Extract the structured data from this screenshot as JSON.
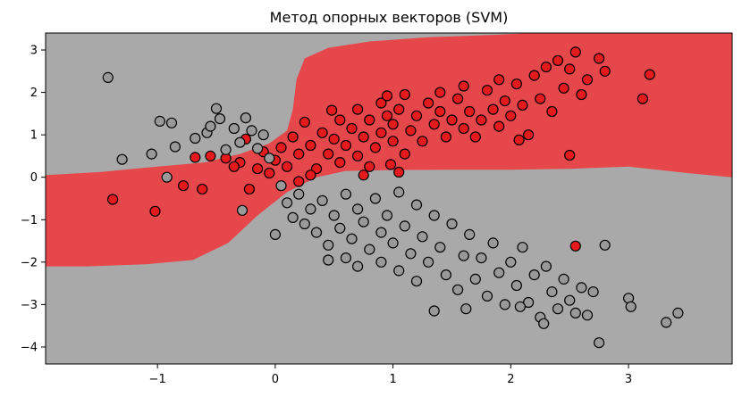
{
  "chart_data": {
    "type": "scatter",
    "title": "Метод опорных векторов (SVM)",
    "xlabel": "",
    "ylabel": "",
    "xlim": [
      -1.95,
      3.88
    ],
    "ylim": [
      -4.4,
      3.4
    ],
    "xticks": [
      -1,
      0,
      1,
      2,
      3
    ],
    "yticks": [
      3,
      2,
      1,
      0,
      -1,
      -2,
      -3,
      -4
    ],
    "xtick_labels": [
      "−1",
      "0",
      "1",
      "2",
      "3"
    ],
    "ytick_labels": [
      "3",
      "2",
      "1",
      "0",
      "−1",
      "−2",
      "−3",
      "−4"
    ],
    "grid": false,
    "legend": false,
    "background_color": "#a9a9a9",
    "decision_region_color": "#e6474a",
    "series": [
      {
        "color": "#e41a1c",
        "points": [
          [
            -1.38,
            -0.52
          ],
          [
            -1.02,
            -0.8
          ],
          [
            -0.78,
            -0.2
          ],
          [
            -0.68,
            0.47
          ],
          [
            -0.62,
            -0.28
          ],
          [
            -0.55,
            0.5
          ],
          [
            -0.42,
            0.45
          ],
          [
            -0.3,
            0.35
          ],
          [
            -0.25,
            0.9
          ],
          [
            -0.22,
            -0.28
          ],
          [
            -0.15,
            0.2
          ],
          [
            -0.1,
            0.6
          ],
          [
            -0.05,
            0.1
          ],
          [
            0.0,
            0.4
          ],
          [
            0.05,
            0.7
          ],
          [
            0.1,
            0.25
          ],
          [
            0.15,
            0.95
          ],
          [
            0.2,
            0.55
          ],
          [
            0.2,
            -0.1
          ],
          [
            0.25,
            1.3
          ],
          [
            0.3,
            0.75
          ],
          [
            0.35,
            0.2
          ],
          [
            0.4,
            1.05
          ],
          [
            0.45,
            0.55
          ],
          [
            0.5,
            0.9
          ],
          [
            0.55,
            1.35
          ],
          [
            0.55,
            0.35
          ],
          [
            0.6,
            0.75
          ],
          [
            0.65,
            1.15
          ],
          [
            0.7,
            0.5
          ],
          [
            0.7,
            1.6
          ],
          [
            0.75,
            0.95
          ],
          [
            0.8,
            1.35
          ],
          [
            0.8,
            0.25
          ],
          [
            0.85,
            0.7
          ],
          [
            0.9,
            1.05
          ],
          [
            0.9,
            1.75
          ],
          [
            0.95,
            1.45
          ],
          [
            1.0,
            0.85
          ],
          [
            1.0,
            1.25
          ],
          [
            1.05,
            1.6
          ],
          [
            1.1,
            0.55
          ],
          [
            1.1,
            1.95
          ],
          [
            1.15,
            1.1
          ],
          [
            1.2,
            1.45
          ],
          [
            1.25,
            0.85
          ],
          [
            1.3,
            1.75
          ],
          [
            1.35,
            1.25
          ],
          [
            1.4,
            1.55
          ],
          [
            1.45,
            0.95
          ],
          [
            1.5,
            1.35
          ],
          [
            1.55,
            1.85
          ],
          [
            1.6,
            1.15
          ],
          [
            1.65,
            1.55
          ],
          [
            1.7,
            0.95
          ],
          [
            1.75,
            1.35
          ],
          [
            1.8,
            2.05
          ],
          [
            1.85,
            1.6
          ],
          [
            1.9,
            1.2
          ],
          [
            1.95,
            1.8
          ],
          [
            2.0,
            1.45
          ],
          [
            2.05,
            2.2
          ],
          [
            2.1,
            1.7
          ],
          [
            2.15,
            1.0
          ],
          [
            2.2,
            2.4
          ],
          [
            2.25,
            1.85
          ],
          [
            2.3,
            2.6
          ],
          [
            2.35,
            1.55
          ],
          [
            2.4,
            2.75
          ],
          [
            2.45,
            2.1
          ],
          [
            2.5,
            2.55
          ],
          [
            2.55,
            2.95
          ],
          [
            2.6,
            1.95
          ],
          [
            2.65,
            2.3
          ],
          [
            2.75,
            2.8
          ],
          [
            2.8,
            2.5
          ],
          [
            3.12,
            1.85
          ],
          [
            3.18,
            2.42
          ],
          [
            2.5,
            0.52
          ],
          [
            2.07,
            0.88
          ],
          [
            0.3,
            0.05
          ],
          [
            0.75,
            0.05
          ],
          [
            0.98,
            0.3
          ],
          [
            1.05,
            0.12
          ],
          [
            2.55,
            -1.62
          ],
          [
            1.6,
            2.15
          ],
          [
            0.48,
            1.58
          ],
          [
            1.9,
            2.3
          ],
          [
            1.4,
            2.0
          ],
          [
            0.95,
            1.92
          ],
          [
            -0.35,
            0.25
          ]
        ]
      },
      {
        "color": "#999999",
        "points": [
          [
            -1.42,
            2.35
          ],
          [
            -1.3,
            0.42
          ],
          [
            -0.98,
            1.32
          ],
          [
            -0.88,
            1.28
          ],
          [
            -0.85,
            0.72
          ],
          [
            -0.68,
            0.92
          ],
          [
            -0.58,
            1.05
          ],
          [
            -0.55,
            1.2
          ],
          [
            -0.5,
            1.62
          ],
          [
            -0.47,
            1.38
          ],
          [
            -0.42,
            0.65
          ],
          [
            -0.35,
            1.15
          ],
          [
            -0.3,
            0.82
          ],
          [
            -0.25,
            1.4
          ],
          [
            -0.2,
            1.1
          ],
          [
            -0.15,
            0.68
          ],
          [
            -0.1,
            1.0
          ],
          [
            -0.05,
            0.45
          ],
          [
            -0.28,
            -0.78
          ],
          [
            -1.05,
            0.55
          ],
          [
            -0.92,
            0.0
          ],
          [
            0.0,
            -1.35
          ],
          [
            0.05,
            -0.2
          ],
          [
            0.1,
            -0.6
          ],
          [
            0.15,
            -0.95
          ],
          [
            0.2,
            -0.4
          ],
          [
            0.25,
            -1.1
          ],
          [
            0.3,
            -0.75
          ],
          [
            0.35,
            -1.3
          ],
          [
            0.4,
            -0.55
          ],
          [
            0.45,
            -1.6
          ],
          [
            0.5,
            -0.9
          ],
          [
            0.55,
            -1.2
          ],
          [
            0.6,
            -0.4
          ],
          [
            0.6,
            -1.9
          ],
          [
            0.65,
            -1.45
          ],
          [
            0.7,
            -0.75
          ],
          [
            0.7,
            -2.1
          ],
          [
            0.75,
            -1.05
          ],
          [
            0.8,
            -1.7
          ],
          [
            0.85,
            -0.5
          ],
          [
            0.9,
            -1.3
          ],
          [
            0.9,
            -2.0
          ],
          [
            0.95,
            -0.9
          ],
          [
            1.0,
            -1.55
          ],
          [
            1.05,
            -0.35
          ],
          [
            1.05,
            -2.2
          ],
          [
            1.1,
            -1.15
          ],
          [
            1.15,
            -1.8
          ],
          [
            1.2,
            -0.65
          ],
          [
            1.2,
            -2.45
          ],
          [
            1.25,
            -1.4
          ],
          [
            1.3,
            -2.0
          ],
          [
            1.35,
            -0.9
          ],
          [
            1.4,
            -1.65
          ],
          [
            1.45,
            -2.3
          ],
          [
            1.5,
            -1.1
          ],
          [
            1.55,
            -2.65
          ],
          [
            1.6,
            -1.85
          ],
          [
            1.65,
            -1.35
          ],
          [
            1.7,
            -2.4
          ],
          [
            1.75,
            -1.9
          ],
          [
            1.8,
            -2.8
          ],
          [
            1.85,
            -1.55
          ],
          [
            1.9,
            -2.25
          ],
          [
            1.95,
            -3.0
          ],
          [
            2.0,
            -2.0
          ],
          [
            2.05,
            -2.55
          ],
          [
            2.1,
            -1.65
          ],
          [
            2.15,
            -2.95
          ],
          [
            2.2,
            -2.3
          ],
          [
            2.25,
            -3.3
          ],
          [
            2.3,
            -2.1
          ],
          [
            2.35,
            -2.7
          ],
          [
            2.4,
            -3.1
          ],
          [
            2.45,
            -2.4
          ],
          [
            2.5,
            -2.9
          ],
          [
            2.55,
            -3.2
          ],
          [
            2.6,
            -2.6
          ],
          [
            2.65,
            -3.25
          ],
          [
            2.7,
            -2.7
          ],
          [
            2.75,
            -3.9
          ],
          [
            2.8,
            -1.6
          ],
          [
            3.0,
            -2.85
          ],
          [
            3.02,
            -3.05
          ],
          [
            3.32,
            -3.42
          ],
          [
            3.42,
            -3.2
          ],
          [
            1.62,
            -3.1
          ],
          [
            2.28,
            -3.45
          ],
          [
            1.35,
            -3.15
          ],
          [
            2.08,
            -3.05
          ],
          [
            0.45,
            -1.95
          ]
        ]
      }
    ]
  }
}
